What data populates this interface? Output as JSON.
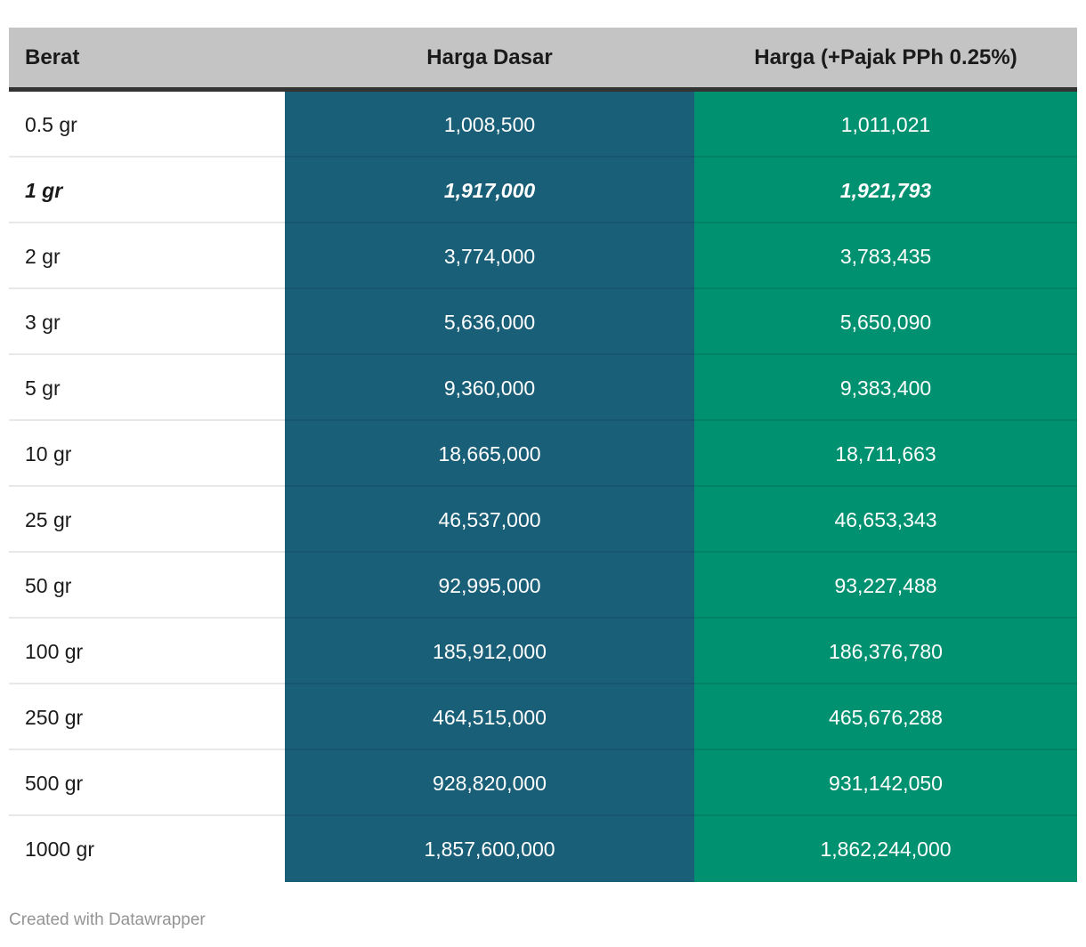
{
  "chart_data": {
    "type": "table",
    "columns": [
      "Berat",
      "Harga Dasar",
      "Harga (+Pajak PPh 0.25%)"
    ],
    "rows": [
      {
        "weight": "0.5 gr",
        "base": "1,008,500",
        "taxed": "1,011,021",
        "bold": false
      },
      {
        "weight": "1 gr",
        "base": "1,917,000",
        "taxed": "1,921,793",
        "bold": true
      },
      {
        "weight": "2 gr",
        "base": "3,774,000",
        "taxed": "3,783,435",
        "bold": false
      },
      {
        "weight": "3 gr",
        "base": "5,636,000",
        "taxed": "5,650,090",
        "bold": false
      },
      {
        "weight": "5 gr",
        "base": "9,360,000",
        "taxed": "9,383,400",
        "bold": false
      },
      {
        "weight": "10 gr",
        "base": "18,665,000",
        "taxed": "18,711,663",
        "bold": false
      },
      {
        "weight": "25 gr",
        "base": "46,537,000",
        "taxed": "46,653,343",
        "bold": false
      },
      {
        "weight": "50 gr",
        "base": "92,995,000",
        "taxed": "93,227,488",
        "bold": false
      },
      {
        "weight": "100 gr",
        "base": "185,912,000",
        "taxed": "186,376,780",
        "bold": false
      },
      {
        "weight": "250 gr",
        "base": "464,515,000",
        "taxed": "465,676,288",
        "bold": false
      },
      {
        "weight": "500 gr",
        "base": "928,820,000",
        "taxed": "931,142,050",
        "bold": false
      },
      {
        "weight": "1000 gr",
        "base": "1,857,600,000",
        "taxed": "1,862,244,000",
        "bold": false
      }
    ]
  },
  "footer": {
    "credit": "Created with Datawrapper"
  },
  "colors": {
    "header_bg": "#c4c4c4",
    "header_rule": "#333333",
    "base_column_bg": "#1a5f78",
    "tax_column_bg": "#009170",
    "header_text": "#1a1a1a",
    "row_label_text": "#1a1a1a",
    "value_text": "#ffffff",
    "credit_text": "#949494"
  }
}
